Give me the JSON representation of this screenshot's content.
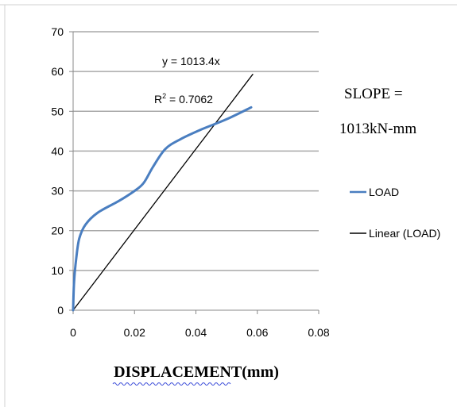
{
  "chart_data": {
    "type": "line",
    "title": "",
    "xlabel": "DISPLACEMENT(mm)",
    "ylabel": "",
    "xlim": [
      0,
      0.08
    ],
    "ylim": [
      0,
      70
    ],
    "x_ticks": [
      "0",
      "0.02",
      "0.04",
      "0.06",
      "0.08"
    ],
    "y_ticks": [
      "0",
      "10",
      "20",
      "30",
      "40",
      "50",
      "60",
      "70"
    ],
    "grid": "horizontal",
    "legend_position": "right",
    "series": [
      {
        "name": "LOAD",
        "color": "#4a7ec0",
        "x": [
          0,
          0.0003,
          0.001,
          0.002,
          0.004,
          0.008,
          0.015,
          0.02,
          0.023,
          0.026,
          0.03,
          0.035,
          0.042,
          0.05,
          0.058
        ],
        "y": [
          0,
          7,
          13,
          18,
          21.5,
          24.5,
          27.5,
          30,
          32,
          36,
          40.5,
          43,
          45.5,
          48,
          51
        ]
      },
      {
        "name": "Linear (LOAD)",
        "color": "#000000",
        "x": [
          0,
          0.0585
        ],
        "y": [
          0,
          59.3
        ]
      }
    ],
    "annotations": {
      "equation": "y = 1013.4x",
      "r2_prefix": "R",
      "r2_sup": "2",
      "r2_value": " = 0.7062",
      "slope_line1": "SLOPE =",
      "slope_line2": "1013kN-mm"
    }
  }
}
